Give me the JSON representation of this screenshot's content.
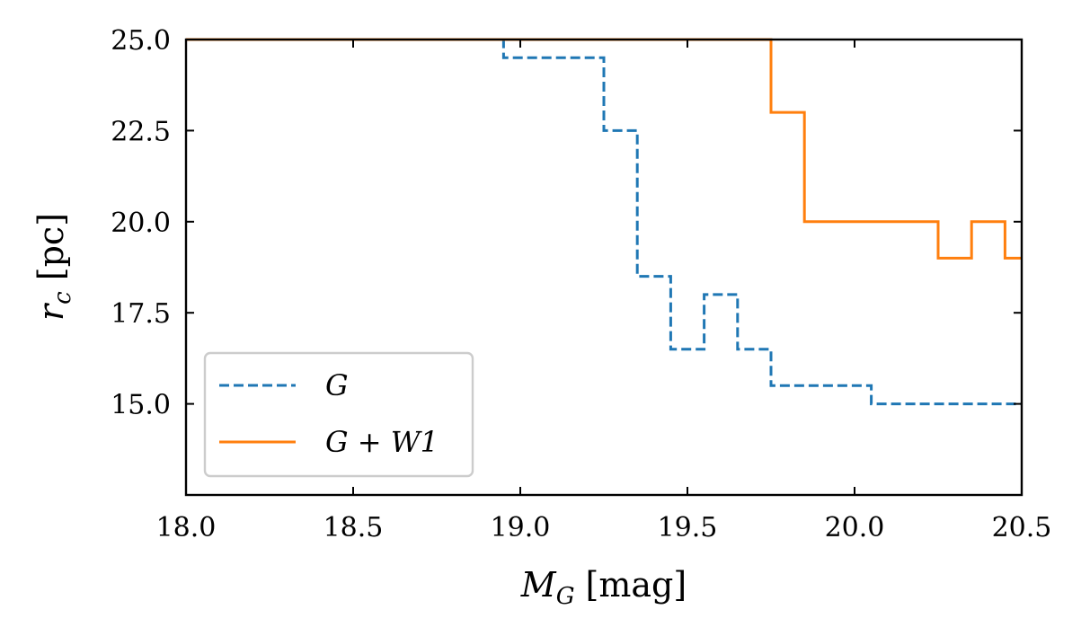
{
  "chart_data": {
    "type": "line",
    "drawstyle": "steps",
    "xlabel_main": "M",
    "xlabel_sub": "G",
    "xlabel_unit": " [mag]",
    "ylabel_main": "r",
    "ylabel_sub": "c",
    "ylabel_unit": " [pc]",
    "xlim": [
      18.0,
      20.5
    ],
    "ylim": [
      12.5,
      25.0
    ],
    "xticks": [
      18.0,
      18.5,
      19.0,
      19.5,
      20.0,
      20.5
    ],
    "xtick_labels": [
      "18.0",
      "18.5",
      "19.0",
      "19.5",
      "20.0",
      "20.5"
    ],
    "yticks": [
      15.0,
      17.5,
      20.0,
      22.5,
      25.0
    ],
    "ytick_labels": [
      "15.0",
      "17.5",
      "20.0",
      "22.5",
      "25.0"
    ],
    "legend_position": "lower-left",
    "series": [
      {
        "name": "G",
        "color": "#1f77b4",
        "linestyle": "dashed",
        "x": [
          18.0,
          18.95,
          19.25,
          19.35,
          19.45,
          19.55,
          19.65,
          19.75,
          20.05,
          20.5
        ],
        "y": [
          25.0,
          24.5,
          22.5,
          18.5,
          16.5,
          18.0,
          16.5,
          15.5,
          15.0,
          15.0
        ]
      },
      {
        "name": "G + W1",
        "color": "#ff7f0e",
        "linestyle": "solid",
        "x": [
          18.0,
          19.75,
          19.85,
          20.25,
          20.35,
          20.45,
          20.5
        ],
        "y": [
          25.0,
          23.0,
          20.0,
          19.0,
          20.0,
          19.0,
          19.0
        ]
      }
    ]
  }
}
